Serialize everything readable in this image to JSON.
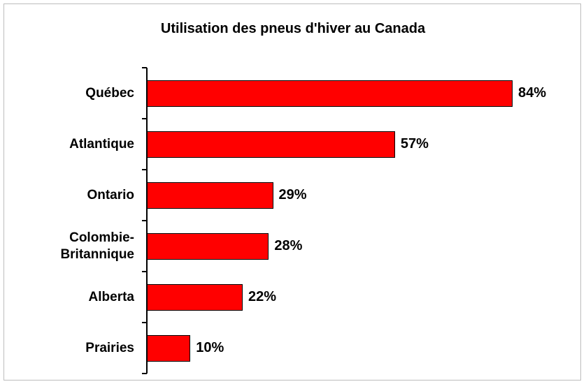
{
  "chart_data": {
    "type": "bar",
    "orientation": "horizontal",
    "title": "Utilisation des pneus d'hiver au Canada",
    "categories": [
      "Québec",
      "Atlantique",
      "Ontario",
      "Colombie-Britannique",
      "Alberta",
      "Prairies"
    ],
    "values": [
      84,
      57,
      29,
      28,
      22,
      10
    ],
    "value_labels": [
      "84%",
      "57%",
      "29%",
      "28%",
      "22%",
      "10%"
    ],
    "color": "#ff0000"
  }
}
